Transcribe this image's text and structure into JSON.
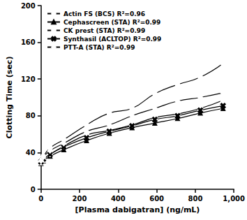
{
  "chart_data": {
    "type": "line",
    "x_label": "[Plasma dabigatran] (ng/mL)",
    "y_label": "Clotting Time (sec)",
    "xlim": [
      0,
      1000
    ],
    "xticks": [
      0,
      200,
      400,
      600,
      800,
      1000
    ],
    "ylim": [
      0,
      200
    ],
    "yticks": [
      0,
      40,
      80,
      120,
      160,
      200
    ],
    "grid": false,
    "legend": "upper left",
    "series": [
      {
        "name": "Actin FS (BCS) R²=0.96",
        "color": "#000000",
        "marker": "circle",
        "line_style": "solid",
        "x": [
          0,
          12,
          47,
          118,
          236,
          354,
          472,
          590,
          708,
          826,
          944
        ],
        "values": [
          33,
          36,
          45,
          54,
          70,
          83,
          88,
          104,
          114,
          122,
          137
        ]
      },
      {
        "name": "Cephascreen (STA) R²=0.99",
        "color": "#000000",
        "marker": "triangle",
        "line_style": "solid",
        "x": [
          0,
          12,
          47,
          118,
          236,
          354,
          472,
          590,
          708,
          826,
          944
        ],
        "values": [
          28,
          31,
          36,
          43,
          53,
          61,
          67,
          72,
          77,
          83,
          88
        ]
      },
      {
        "name": "CK prest (STA) R²=0.99",
        "color": "#000000",
        "marker": "square",
        "line_style": "solid",
        "x": [
          0,
          12,
          47,
          118,
          236,
          354,
          472,
          590,
          708,
          826,
          944
        ],
        "values": [
          29,
          32,
          38,
          47,
          59,
          64,
          70,
          78,
          82,
          88,
          97
        ]
      },
      {
        "name": "Synthasil (ACLTOP) R²=0.99",
        "color": "#000000",
        "marker": "x",
        "line_style": "solid",
        "x": [
          0,
          12,
          47,
          118,
          236,
          354,
          472,
          590,
          708,
          826,
          944
        ],
        "values": [
          30,
          33,
          38,
          46,
          56,
          63,
          69,
          76,
          80,
          86,
          91
        ]
      },
      {
        "name": "PTT-A (STA) R²=0.99",
        "color": "#000000",
        "marker": "diamond",
        "line_style": "solid",
        "x": [
          0,
          12,
          47,
          118,
          236,
          354,
          472,
          590,
          708,
          826,
          944
        ],
        "values": [
          31,
          35,
          42,
          50,
          63,
          70,
          80,
          88,
          96,
          100,
          105
        ]
      }
    ]
  }
}
